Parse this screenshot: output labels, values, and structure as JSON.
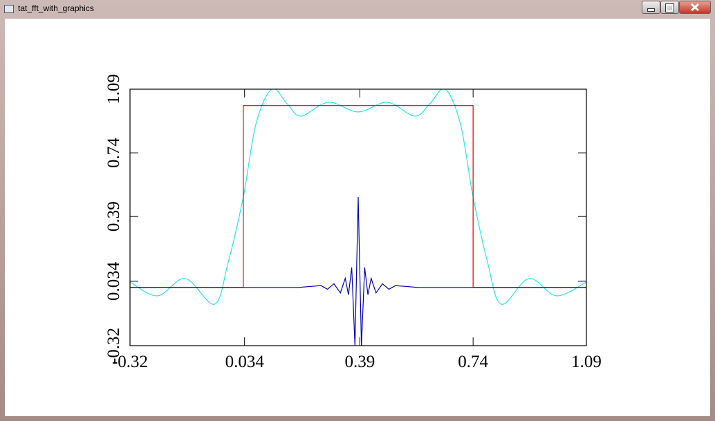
{
  "window": {
    "title": "tat_fft_with_graphics"
  },
  "chart_data": {
    "type": "line",
    "xlim": [
      -0.32,
      1.09
    ],
    "xticks": [
      -0.32,
      0.034,
      0.39,
      0.74,
      1.09
    ],
    "ylim": [
      -0.32,
      1.09
    ],
    "yticks": [
      -0.32,
      0.034,
      0.39,
      0.74,
      1.09
    ],
    "series": [
      {
        "color": "#22e4ec",
        "smooth": true,
        "x": [
          -0.32,
          -0.235,
          -0.149,
          -0.059,
          -0.017,
          0.03,
          0.069,
          0.118,
          0.165,
          0.208,
          0.293,
          0.385,
          0.475,
          0.56,
          0.607,
          0.654,
          0.701,
          0.74,
          0.785,
          0.827,
          0.913,
          0.998,
          1.09
        ],
        "values": [
          0.03,
          -0.046,
          0.049,
          -0.092,
          0.136,
          0.497,
          0.897,
          1.09,
          1.011,
          0.942,
          1.018,
          0.965,
          1.018,
          0.942,
          1.011,
          1.09,
          0.897,
          0.497,
          0.136,
          -0.092,
          0.049,
          -0.046,
          0.03
        ]
      },
      {
        "color": "#dd0000",
        "smooth": false,
        "x": [
          -0.32,
          0.03,
          0.03,
          0.74,
          0.74,
          1.09
        ],
        "values": [
          0,
          0,
          1,
          1,
          0,
          0
        ]
      },
      {
        "color": "#0000b4",
        "smooth": false,
        "x": [
          -0.32,
          0.2,
          0.27,
          0.29,
          0.31,
          0.33,
          0.345,
          0.355,
          0.365,
          0.375,
          0.385,
          0.395,
          0.405,
          0.415,
          0.425,
          0.44,
          0.46,
          0.48,
          0.5,
          0.57,
          1.09
        ],
        "values": [
          0,
          0,
          0.01,
          -0.01,
          0.02,
          -0.03,
          0.05,
          -0.04,
          0.11,
          -0.32,
          0.497,
          -0.32,
          0.11,
          -0.04,
          0.05,
          -0.03,
          0.02,
          -0.01,
          0.01,
          0,
          0
        ]
      }
    ]
  }
}
